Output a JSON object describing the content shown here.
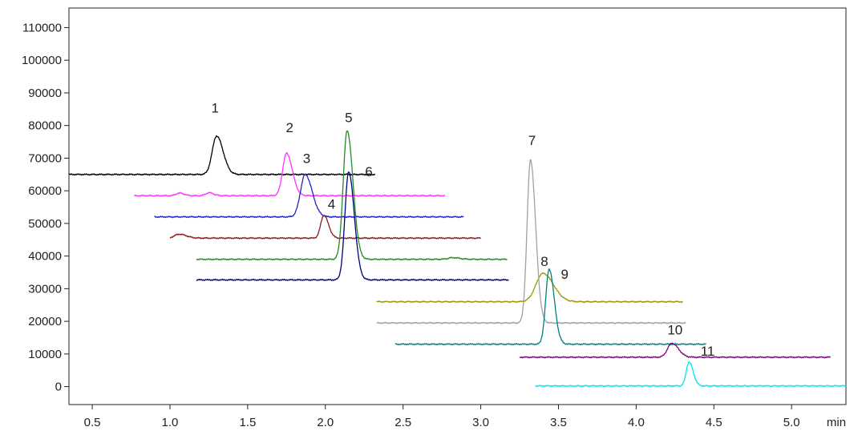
{
  "chart_data": {
    "type": "line",
    "title": "",
    "xlabel": "",
    "ylabel": "",
    "x_unit_label": "min",
    "xlim": [
      0.35,
      5.35
    ],
    "ylim": [
      -5500,
      116000
    ],
    "x_ticks": [
      0.5,
      1.0,
      1.5,
      2.0,
      2.5,
      3.0,
      3.5,
      4.0,
      4.5,
      5.0
    ],
    "x_tick_labels": [
      "0.5",
      "1.0",
      "1.5",
      "2.0",
      "2.5",
      "3.0",
      "3.5",
      "4.0",
      "4.5",
      "5.0"
    ],
    "y_ticks": [
      0,
      10000,
      20000,
      30000,
      40000,
      50000,
      60000,
      70000,
      80000,
      90000,
      100000,
      110000
    ],
    "y_tick_labels": [
      "0",
      "10000",
      "20000",
      "30000",
      "40000",
      "50000",
      "60000",
      "70000",
      "80000",
      "90000",
      "100000",
      "110000"
    ],
    "grid": false,
    "legend": "none",
    "series": [
      {
        "color": "#000000",
        "x_start": 0.35,
        "x_end": 2.32,
        "baseline": 65000,
        "peaks": [
          {
            "x": 1.3,
            "height": 11800,
            "width": 0.028
          }
        ]
      },
      {
        "color": "#ff33ff",
        "x_start": 0.77,
        "x_end": 2.77,
        "baseline": 58500,
        "peaks": [
          {
            "x": 1.75,
            "height": 13000,
            "width": 0.025
          },
          {
            "x": 1.06,
            "height": 800,
            "width": 0.02
          },
          {
            "x": 1.25,
            "height": 900,
            "width": 0.02
          }
        ]
      },
      {
        "color": "#2222cc",
        "x_start": 0.9,
        "x_end": 2.89,
        "baseline": 52000,
        "peaks": [
          {
            "x": 1.87,
            "height": 13000,
            "width": 0.03
          }
        ]
      },
      {
        "color": "#8b1a1a",
        "x_start": 1.0,
        "x_end": 3.0,
        "baseline": 45500,
        "peaks": [
          {
            "x": 1.99,
            "height": 7000,
            "width": 0.02
          },
          {
            "x": 1.06,
            "height": 1200,
            "width": 0.03
          }
        ]
      },
      {
        "color": "#228b22",
        "x_start": 1.17,
        "x_end": 3.17,
        "baseline": 39000,
        "peaks": [
          {
            "x": 2.14,
            "height": 39500,
            "width": 0.025
          },
          {
            "x": 2.82,
            "height": 500,
            "width": 0.03
          }
        ]
      },
      {
        "color": "#000080",
        "x_start": 1.17,
        "x_end": 3.18,
        "baseline": 32700,
        "peaks": [
          {
            "x": 2.15,
            "height": 33200,
            "width": 0.024
          }
        ]
      },
      {
        "color": "#999900",
        "x_start": 2.33,
        "x_end": 4.3,
        "baseline": 26000,
        "peaks": [
          {
            "x": 3.4,
            "height": 8700,
            "width": 0.045
          }
        ]
      },
      {
        "color": "#a0a0a0",
        "x_start": 2.33,
        "x_end": 4.32,
        "baseline": 19500,
        "peaks": [
          {
            "x": 3.32,
            "height": 50000,
            "width": 0.022
          }
        ]
      },
      {
        "color": "#008080",
        "x_start": 2.45,
        "x_end": 4.45,
        "baseline": 13000,
        "peaks": [
          {
            "x": 3.44,
            "height": 23000,
            "width": 0.022
          }
        ]
      },
      {
        "color": "#800080",
        "x_start": 3.25,
        "x_end": 5.25,
        "baseline": 9000,
        "peaks": [
          {
            "x": 4.23,
            "height": 4300,
            "width": 0.028
          }
        ]
      },
      {
        "color": "#00e5ee",
        "x_start": 3.35,
        "x_end": 5.35,
        "baseline": 200,
        "peaks": [
          {
            "x": 4.34,
            "height": 7300,
            "width": 0.018
          }
        ]
      }
    ],
    "annotations": [
      {
        "text": "1",
        "x": 1.29,
        "y": 84000
      },
      {
        "text": "2",
        "x": 1.77,
        "y": 78000
      },
      {
        "text": "3",
        "x": 1.88,
        "y": 68500
      },
      {
        "text": "4",
        "x": 2.04,
        "y": 54500
      },
      {
        "text": "5",
        "x": 2.15,
        "y": 81000
      },
      {
        "text": "6",
        "x": 2.28,
        "y": 64500
      },
      {
        "text": "7",
        "x": 3.33,
        "y": 74000
      },
      {
        "text": "8",
        "x": 3.41,
        "y": 37000
      },
      {
        "text": "9",
        "x": 3.54,
        "y": 33000
      },
      {
        "text": "10",
        "x": 4.25,
        "y": 16000
      },
      {
        "text": "11",
        "x": 4.46,
        "y": 9500
      }
    ]
  }
}
